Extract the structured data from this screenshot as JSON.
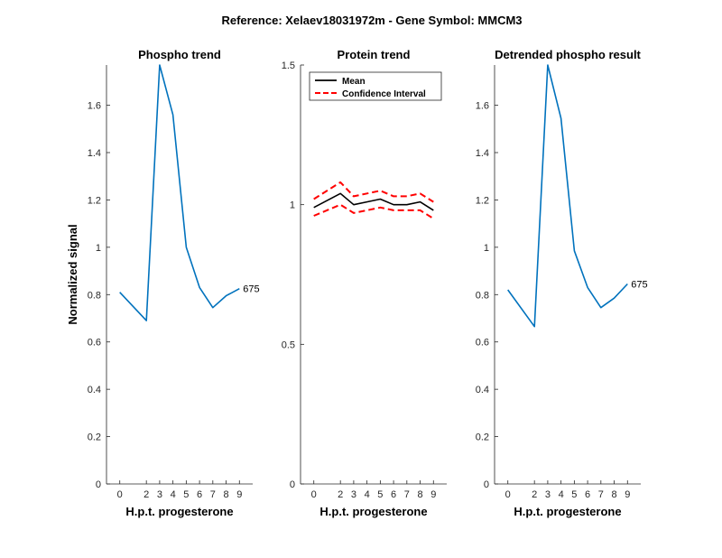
{
  "figure": {
    "title": "Reference:  Xelaev18031972m - Gene Symbol:  MMCM3"
  },
  "chart_data": [
    {
      "type": "line",
      "title": "Phospho trend",
      "xlabel": "H.p.t. progesterone",
      "ylabel": "Normalized signal",
      "xlim": [
        -1,
        10
      ],
      "ylim": [
        0,
        1.77
      ],
      "x_ticks": [
        0,
        2,
        3,
        4,
        5,
        6,
        7,
        8,
        9
      ],
      "y_ticks": [
        0,
        0.2,
        0.4,
        0.6,
        0.8,
        1,
        1.2,
        1.4,
        1.6
      ],
      "y_tick_labels": [
        "0",
        "0.2",
        "0.4",
        "0.6",
        "0.8",
        "1",
        "1.2",
        "1.4",
        "1.6"
      ],
      "series": [
        {
          "color": "#0072BD",
          "x": [
            0,
            2,
            3,
            4,
            5,
            6,
            7,
            8,
            9
          ],
          "y": [
            0.81,
            0.69,
            1.77,
            1.56,
            1.0,
            0.83,
            0.745,
            0.795,
            0.825
          ]
        }
      ],
      "annotations": [
        {
          "text": "675",
          "x": 9,
          "y": 0.825
        }
      ]
    },
    {
      "type": "line",
      "title": "Protein trend",
      "xlabel": "H.p.t. progesterone",
      "ylabel": "",
      "xlim": [
        -1,
        10
      ],
      "ylim": [
        0,
        1.5
      ],
      "x_ticks": [
        0,
        2,
        3,
        4,
        5,
        6,
        7,
        8,
        9
      ],
      "y_ticks": [
        0,
        0.5,
        1,
        1.5
      ],
      "y_tick_labels": [
        "0",
        "0.5",
        "1",
        "1.5"
      ],
      "legend": {
        "position": "top-left",
        "entries": [
          "Mean",
          "Confidence Interval"
        ]
      },
      "series": [
        {
          "name": "Mean",
          "color": "#000000",
          "style": "solid",
          "x": [
            0,
            2,
            3,
            4,
            5,
            6,
            7,
            8,
            9
          ],
          "y": [
            0.99,
            1.04,
            1.0,
            1.01,
            1.02,
            1.0,
            1.0,
            1.01,
            0.98
          ]
        },
        {
          "name": "Confidence Interval",
          "color": "#FF0000",
          "style": "dashed",
          "x": [
            0,
            2,
            3,
            4,
            5,
            6,
            7,
            8,
            9
          ],
          "y": [
            1.02,
            1.08,
            1.03,
            1.04,
            1.05,
            1.03,
            1.03,
            1.04,
            1.01
          ]
        },
        {
          "name": "Confidence Interval",
          "color": "#FF0000",
          "style": "dashed",
          "x": [
            0,
            2,
            3,
            4,
            5,
            6,
            7,
            8,
            9
          ],
          "y": [
            0.96,
            1.0,
            0.97,
            0.98,
            0.99,
            0.98,
            0.98,
            0.98,
            0.95
          ]
        }
      ]
    },
    {
      "type": "line",
      "title": "Detrended phospho result",
      "xlabel": "H.p.t. progesterone",
      "ylabel": "",
      "xlim": [
        -1,
        10
      ],
      "ylim": [
        0,
        1.77
      ],
      "x_ticks": [
        0,
        2,
        3,
        4,
        5,
        6,
        7,
        8,
        9
      ],
      "y_ticks": [
        0,
        0.2,
        0.4,
        0.6,
        0.8,
        1,
        1.2,
        1.4,
        1.6
      ],
      "y_tick_labels": [
        "0",
        "0.2",
        "0.4",
        "0.6",
        "0.8",
        "1",
        "1.2",
        "1.4",
        "1.6"
      ],
      "series": [
        {
          "color": "#0072BD",
          "x": [
            0,
            2,
            3,
            4,
            5,
            6,
            7,
            8,
            9
          ],
          "y": [
            0.82,
            0.665,
            1.77,
            1.545,
            0.985,
            0.83,
            0.745,
            0.785,
            0.845
          ]
        }
      ],
      "annotations": [
        {
          "text": "675",
          "x": 9,
          "y": 0.845
        }
      ]
    }
  ]
}
